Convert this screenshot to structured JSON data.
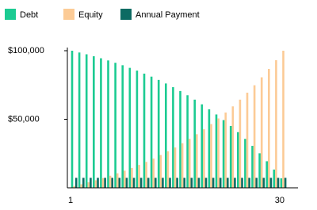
{
  "chart_data": {
    "type": "bar",
    "categories": [
      "1",
      null,
      null,
      null,
      null,
      null,
      null,
      null,
      null,
      null,
      null,
      null,
      null,
      null,
      null,
      null,
      null,
      null,
      null,
      null,
      null,
      null,
      null,
      null,
      null,
      null,
      null,
      null,
      null,
      "30"
    ],
    "series": [
      {
        "name": "Debt",
        "color": "#1ccb92",
        "values": [
          100000,
          98700,
          97400,
          96000,
          94500,
          92900,
          91200,
          89400,
          87500,
          85500,
          83300,
          81100,
          78700,
          76100,
          73400,
          70600,
          67500,
          64300,
          60900,
          57300,
          53500,
          49400,
          45100,
          40600,
          35700,
          30600,
          25200,
          19400,
          13300,
          6900
        ]
      },
      {
        "name": "Equity",
        "color": "#fccb96",
        "values": [
          1300,
          2600,
          4000,
          5500,
          7100,
          8800,
          10600,
          12500,
          14500,
          16700,
          18900,
          21300,
          23900,
          26600,
          29400,
          32500,
          35700,
          39100,
          42700,
          46500,
          50600,
          54900,
          59400,
          64300,
          69400,
          74800,
          80600,
          86700,
          93100,
          100000
        ]
      },
      {
        "name": "Annual Payment",
        "color": "#0d6b63",
        "values": [
          7265,
          7265,
          7265,
          7265,
          7265,
          7265,
          7265,
          7265,
          7265,
          7265,
          7265,
          7265,
          7265,
          7265,
          7265,
          7265,
          7265,
          7265,
          7265,
          7265,
          7265,
          7265,
          7265,
          7265,
          7265,
          7265,
          7265,
          7265,
          7265,
          7265
        ]
      }
    ],
    "ylim": [
      0,
      100000
    ],
    "yticks": [
      {
        "value": 50000,
        "label": "$50,000"
      },
      {
        "value": 100000,
        "label": "$100,000"
      }
    ]
  }
}
